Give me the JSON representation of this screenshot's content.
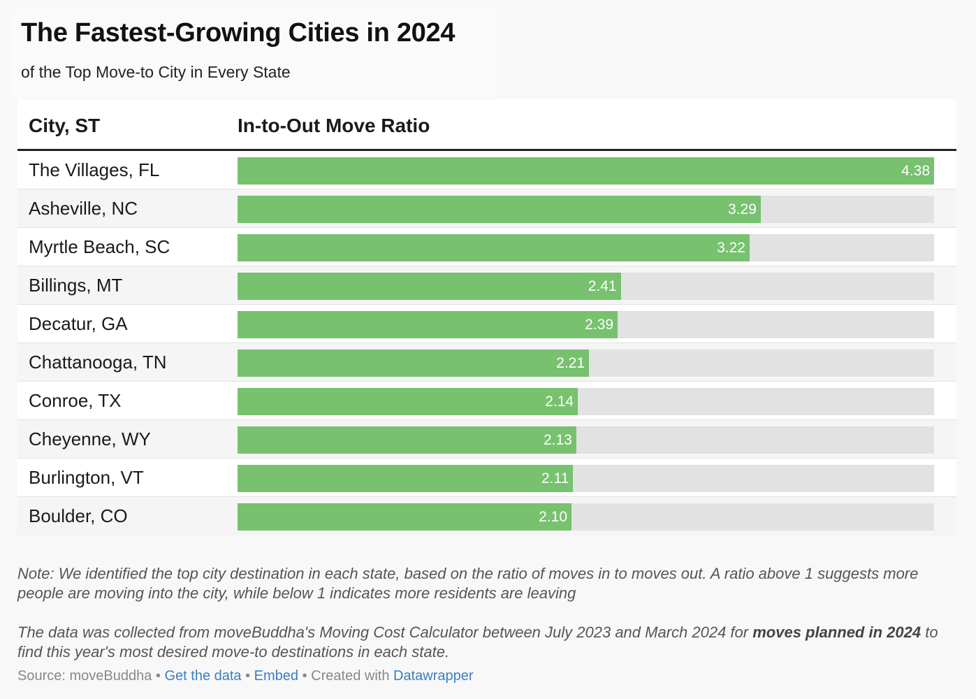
{
  "header": {
    "title": "The Fastest-Growing Cities in 2024",
    "subtitle": "of the Top Move-to City in Every State"
  },
  "table": {
    "col_city": "City, ST",
    "col_ratio": "In-to-Out Move Ratio"
  },
  "chart_data": {
    "type": "bar",
    "orientation": "horizontal",
    "title": "The Fastest-Growing Cities in 2024",
    "subtitle": "of the Top Move-to City in Every State",
    "xlabel": "In-to-Out Move Ratio",
    "ylabel": "City, ST",
    "xlim": [
      0,
      4.38
    ],
    "categories": [
      "The Villages, FL",
      "Asheville, NC",
      "Myrtle Beach, SC",
      "Billings, MT",
      "Decatur, GA",
      "Chattanooga, TN",
      "Conroe, TX",
      "Cheyenne, WY",
      "Burlington, VT",
      "Boulder, CO"
    ],
    "values": [
      4.38,
      3.29,
      3.22,
      2.41,
      2.39,
      2.21,
      2.14,
      2.13,
      2.11,
      2.1
    ],
    "labels": [
      "4.38",
      "3.29",
      "3.22",
      "2.41",
      "2.39",
      "2.21",
      "2.14",
      "2.13",
      "2.11",
      "2.10"
    ]
  },
  "notes": {
    "note1": "Note: We identified the top city destination in each state, based on the ratio of moves in to moves out. A ratio above 1 suggests more people are moving into the city, while below 1 indicates more residents are leaving",
    "note2_pre": "The data was collected from moveBuddha's Moving Cost Calculator between July 2023 and March 2024 for ",
    "note2_bold": "moves planned in 2024",
    "note2_post": " to find this year's most desired move-to destinations in each state."
  },
  "footer": {
    "source": "Source: moveBuddha",
    "sep1": " • ",
    "get_data": "Get the data",
    "sep2": " • ",
    "embed": "Embed",
    "created": " • Created with ",
    "datawrapper": "Datawrapper"
  },
  "colors": {
    "bar": "#77c16f",
    "track": "#e2e2e2",
    "link": "#3a7ec4"
  }
}
